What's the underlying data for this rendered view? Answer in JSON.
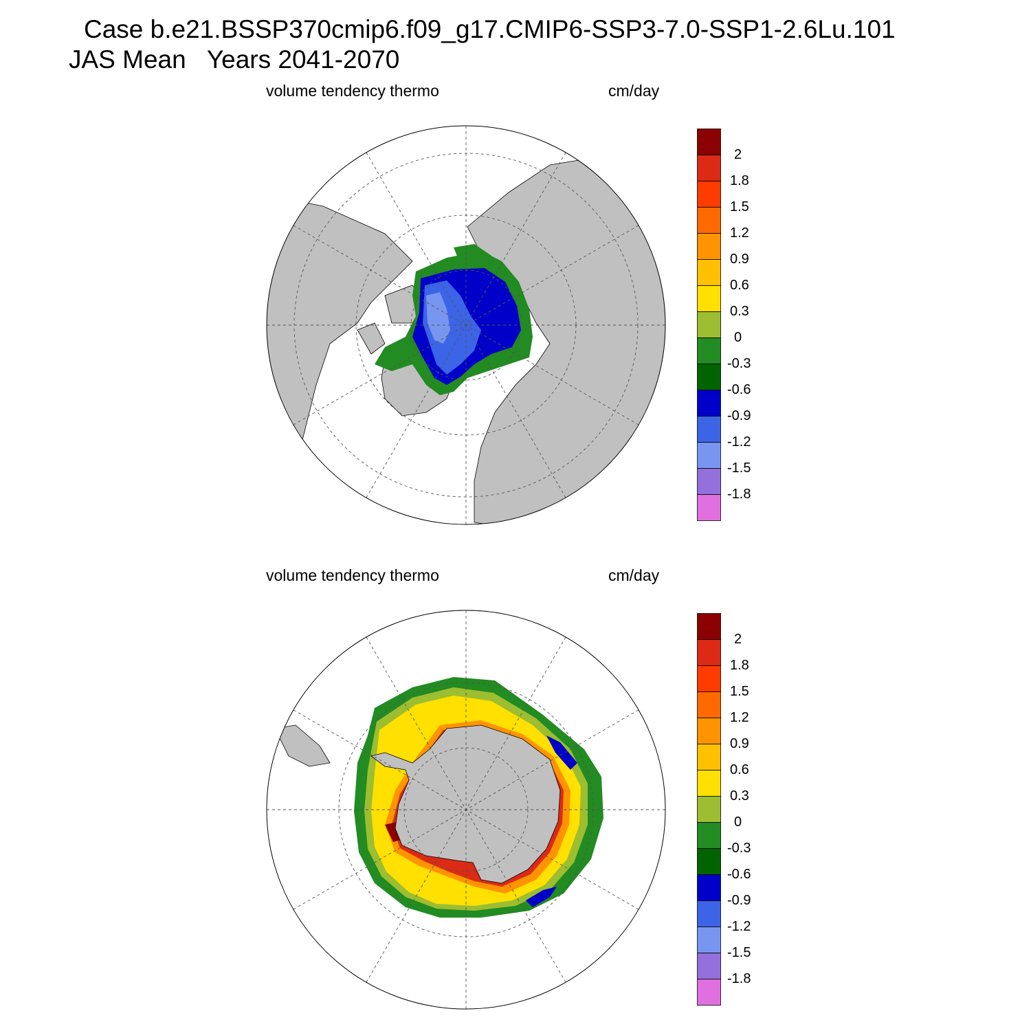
{
  "title": {
    "line1": "Case b.e21.BSSP370cmip6.f09_g17.CMIP6-SSP3-7.0-SSP1-2.6Lu.101",
    "line2": "JAS Mean   Years 2041-2070"
  },
  "panels": [
    {
      "id": "north",
      "label_left": "volume tendency thermo",
      "label_right": "cm/day",
      "hemisphere": "Northern"
    },
    {
      "id": "south",
      "label_left": "volume tendency thermo",
      "label_right": "cm/day",
      "hemisphere": "Southern"
    }
  ],
  "colorbar": {
    "labels": [
      "2",
      "1.8",
      "1.5",
      "1.2",
      "0.9",
      "0.6",
      "0.3",
      "0",
      "-0.3",
      "-0.6",
      "-0.9",
      "-1.2",
      "-1.5",
      "-1.8"
    ],
    "colors": [
      "#8b0000",
      "#dc2a14",
      "#ff3c00",
      "#ff6a00",
      "#ff9400",
      "#ffc000",
      "#ffe000",
      "#9cbe30",
      "#228b22",
      "#006400",
      "#0000c8",
      "#3c64e6",
      "#7896f0",
      "#9370db",
      "#e070e0"
    ]
  },
  "colors": {
    "land": "#c0c0c0",
    "ocean": "#ffffff",
    "grid": "#555555"
  }
}
